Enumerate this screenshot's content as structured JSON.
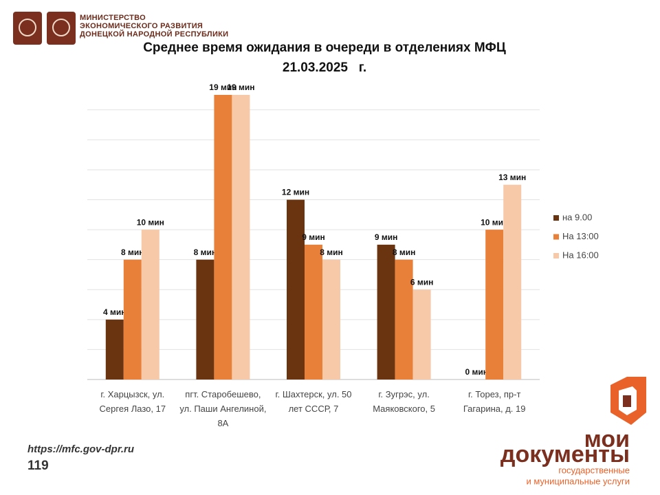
{
  "header": {
    "ministry": [
      "МИНИСТЕРСТВО",
      "ЭКОНОМИЧЕСКОГО РАЗВИТИЯ",
      "ДОНЕЦКОЙ НАРОДНОЙ РЕСПУБЛИКИ"
    ]
  },
  "chart_data": {
    "type": "bar",
    "title": "Среднее время ожидания в очереди в отделениях МФЦ",
    "subtitle": "21.03.2025   г.",
    "categories": [
      "г. Харцызск, ул. Сергея Лазо, 17",
      "пгт. Старобешево, ул. Паши Ангелиной, 8А",
      "г. Шахтерск, ул. 50 лет СССР, 7",
      "г. Зугрэс, ул. Маяковского, 5",
      "г. Торез, пр-т Гагарина, д. 19"
    ],
    "series": [
      {
        "name": "на 9.00",
        "color": "#6b3410",
        "values": [
          4,
          8,
          12,
          9,
          0
        ],
        "value_labels": [
          "4 мин",
          "8 мин",
          "12 мин",
          "9 мин",
          "0 мин"
        ]
      },
      {
        "name": "На 13:00",
        "color": "#e8803a",
        "values": [
          8,
          19,
          9,
          8,
          10
        ],
        "value_labels": [
          "8 мин",
          "19 мин",
          "9 мин",
          "8 мин",
          "10 мин"
        ]
      },
      {
        "name": "На 16:00",
        "color": "#f7c9a8",
        "values": [
          10,
          19,
          8,
          6,
          13
        ],
        "value_labels": [
          "10 мин",
          "19 мин",
          "8 мин",
          "6 мин",
          "13 мин"
        ]
      }
    ],
    "ylim": [
      0,
      19
    ],
    "yticks": [
      0,
      2,
      4,
      6,
      8,
      10,
      12,
      14,
      16,
      18
    ],
    "grid": true,
    "legend": "right"
  },
  "footer": {
    "url": "https://mfc.gov-dpr.ru",
    "page": "119",
    "brand": [
      "мои",
      "документы"
    ],
    "brand_sub": [
      "государственные",
      "и муниципальные услуги"
    ]
  }
}
